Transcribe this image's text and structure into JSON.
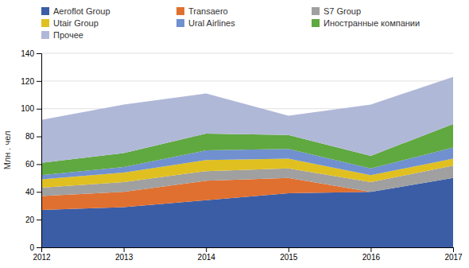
{
  "chart_data": {
    "type": "area",
    "stacked": true,
    "x": [
      2012,
      2013,
      2014,
      2015,
      2016,
      2017
    ],
    "series": [
      {
        "name": "Aeroflot Group",
        "color": "#3b5da6",
        "values": [
          27,
          29,
          34,
          39,
          40,
          50
        ]
      },
      {
        "name": "Transaero",
        "color": "#e07030",
        "values": [
          10,
          11,
          14,
          11,
          0,
          0
        ]
      },
      {
        "name": "S7 Group",
        "color": "#a0a0a0",
        "values": [
          6,
          7,
          7,
          7,
          7,
          9
        ]
      },
      {
        "name": "Utair Group",
        "color": "#e0c020",
        "values": [
          6,
          7,
          8,
          7,
          5,
          5
        ]
      },
      {
        "name": "Ural Airlines",
        "color": "#7090d0",
        "values": [
          3,
          4,
          7,
          7,
          5,
          8
        ]
      },
      {
        "name": "Иностранные компании",
        "color": "#60a840",
        "values": [
          9,
          10,
          12,
          10,
          9,
          17
        ]
      },
      {
        "name": "Прочее",
        "color": "#b0b8d8",
        "values": [
          31,
          35,
          29,
          14,
          37,
          34
        ]
      }
    ],
    "ylabel": "Млн . чел",
    "xlim": [
      2012,
      2017
    ],
    "xticks": [
      2012,
      2013,
      2014,
      2015,
      2016,
      2017
    ],
    "ylim": [
      0,
      140
    ],
    "yticks": [
      0,
      20,
      40,
      60,
      80,
      100,
      120,
      140
    ],
    "grid": true,
    "legend": "top"
  }
}
